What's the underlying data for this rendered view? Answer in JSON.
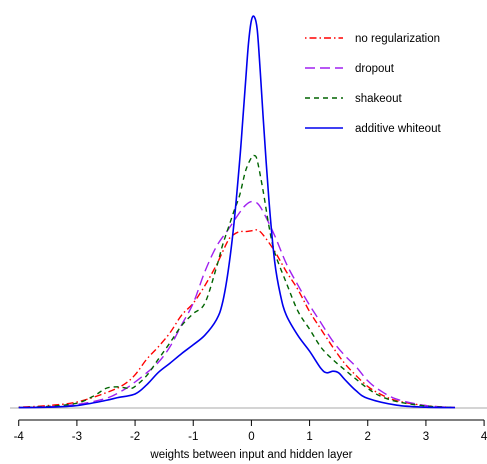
{
  "chart_data": {
    "type": "line",
    "title": "",
    "xlabel": "weights between input and hidden layer",
    "ylabel": "",
    "xlim": [
      -4.15,
      4.05
    ],
    "ylim": [
      0,
      0.1
    ],
    "xticks": [
      -4,
      -3,
      -2,
      -1,
      0,
      1,
      2,
      3,
      4
    ],
    "xtick_labels": [
      "-4",
      "-3",
      "-2",
      "-1",
      "0",
      "1",
      "2",
      "3",
      "4"
    ],
    "grid": false,
    "baseline": 0,
    "legend_position": "top-right",
    "series": [
      {
        "name": "no regularization",
        "color": "#ff0000",
        "dash": "dotdash",
        "x": [
          -4.0,
          -3.5,
          -3.0,
          -2.5,
          -2.2,
          -2.0,
          -1.8,
          -1.6,
          -1.4,
          -1.2,
          -1.0,
          -0.8,
          -0.6,
          -0.4,
          -0.3,
          -0.2,
          -0.1,
          0.0,
          0.1,
          0.2,
          0.4,
          0.6,
          0.8,
          1.0,
          1.2,
          1.4,
          1.6,
          1.8,
          2.0,
          2.2,
          2.5,
          3.0,
          3.5
        ],
        "y": [
          0.0002,
          0.0006,
          0.0015,
          0.0038,
          0.0058,
          0.0083,
          0.0122,
          0.0153,
          0.0188,
          0.0232,
          0.0262,
          0.0306,
          0.0358,
          0.0419,
          0.0434,
          0.0441,
          0.0441,
          0.0443,
          0.0445,
          0.0433,
          0.0392,
          0.0341,
          0.0296,
          0.0241,
          0.0196,
          0.0152,
          0.0112,
          0.0081,
          0.0054,
          0.0036,
          0.0018,
          0.0006,
          0.0001
        ]
      },
      {
        "name": "dropout",
        "color": "#a020f0",
        "dash": "longdash",
        "x": [
          -4.0,
          -3.5,
          -3.0,
          -2.5,
          -2.2,
          -2.0,
          -1.8,
          -1.6,
          -1.4,
          -1.2,
          -1.0,
          -0.8,
          -0.6,
          -0.4,
          -0.2,
          -0.1,
          0.0,
          0.1,
          0.2,
          0.4,
          0.6,
          0.8,
          1.0,
          1.2,
          1.4,
          1.6,
          1.8,
          2.0,
          2.2,
          2.5,
          3.0,
          3.5
        ],
        "y": [
          0.0001,
          0.0003,
          0.0009,
          0.0024,
          0.0045,
          0.0065,
          0.0088,
          0.0114,
          0.0153,
          0.0208,
          0.0262,
          0.0341,
          0.0404,
          0.0446,
          0.0489,
          0.0507,
          0.0516,
          0.0512,
          0.0491,
          0.0431,
          0.0361,
          0.0307,
          0.0257,
          0.0212,
          0.0167,
          0.0132,
          0.0103,
          0.0068,
          0.0045,
          0.0022,
          0.0006,
          0.0001
        ]
      },
      {
        "name": "shakeout",
        "color": "#006400",
        "dash": "dash",
        "x": [
          -4.0,
          -3.5,
          -3.0,
          -2.7,
          -2.5,
          -2.3,
          -2.1,
          -2.0,
          -1.8,
          -1.6,
          -1.4,
          -1.2,
          -1.0,
          -0.8,
          -0.6,
          -0.5,
          -0.4,
          -0.3,
          -0.2,
          -0.1,
          0.0,
          0.05,
          0.1,
          0.2,
          0.3,
          0.4,
          0.6,
          0.8,
          1.0,
          1.2,
          1.4,
          1.6,
          1.8,
          2.0,
          2.2,
          2.5,
          3.0,
          3.5
        ],
        "y": [
          0.0001,
          0.0004,
          0.0012,
          0.0031,
          0.0049,
          0.0053,
          0.0049,
          0.0054,
          0.0081,
          0.0122,
          0.0163,
          0.0206,
          0.0236,
          0.0262,
          0.0352,
          0.0405,
          0.0449,
          0.0492,
          0.0533,
          0.0593,
          0.0626,
          0.0631,
          0.0619,
          0.0544,
          0.0456,
          0.0389,
          0.0313,
          0.0242,
          0.0197,
          0.0151,
          0.0121,
          0.0096,
          0.0072,
          0.0049,
          0.0031,
          0.0016,
          0.0005,
          0.0001
        ]
      },
      {
        "name": "additive whiteout",
        "color": "#0000ee",
        "dash": "solid",
        "x": [
          -4.0,
          -3.5,
          -3.0,
          -2.5,
          -2.3,
          -2.0,
          -1.8,
          -1.6,
          -1.4,
          -1.2,
          -1.0,
          -0.8,
          -0.6,
          -0.5,
          -0.4,
          -0.3,
          -0.2,
          -0.15,
          -0.1,
          -0.05,
          0.0,
          0.05,
          0.1,
          0.15,
          0.2,
          0.3,
          0.4,
          0.5,
          0.6,
          0.8,
          1.0,
          1.2,
          1.3,
          1.4,
          1.5,
          1.6,
          1.8,
          2.0,
          2.5,
          3.0,
          3.5
        ],
        "y": [
          0.0001,
          0.0002,
          0.0006,
          0.0019,
          0.0026,
          0.0035,
          0.0058,
          0.0089,
          0.0112,
          0.0136,
          0.0158,
          0.0182,
          0.0221,
          0.0261,
          0.0342,
          0.0461,
          0.0621,
          0.0717,
          0.0816,
          0.0912,
          0.0969,
          0.0978,
          0.0946,
          0.0846,
          0.0731,
          0.0522,
          0.0366,
          0.0282,
          0.0232,
          0.0181,
          0.0142,
          0.0098,
          0.0088,
          0.0092,
          0.0088,
          0.0072,
          0.0043,
          0.0024,
          0.0007,
          0.0002,
          0.0001
        ]
      }
    ]
  }
}
